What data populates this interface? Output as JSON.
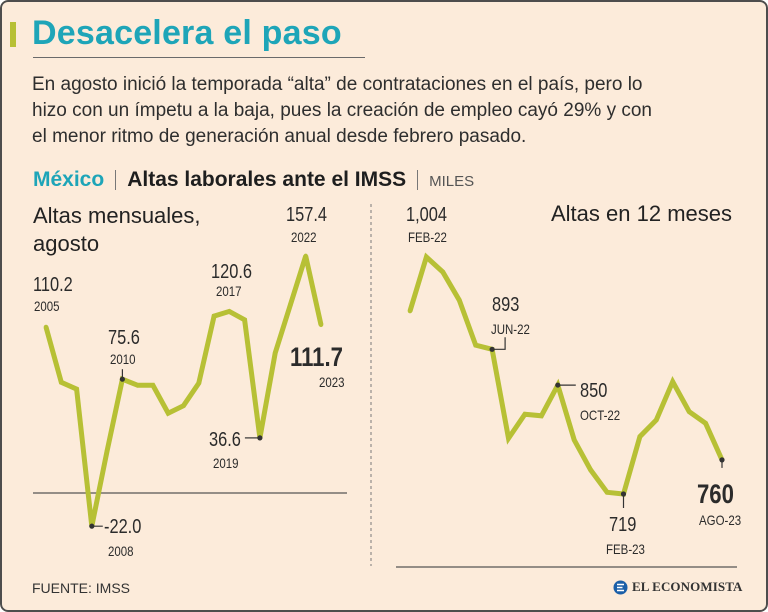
{
  "title": "Desacelera el paso",
  "intro_lines": [
    "En agosto inició la temporada “alta” de contrataciones en el país, pero lo",
    "hizo con un ímpetu a la baja, pues la creación de empleo cayó 29% y con",
    "el menor ritmo de generación anual desde febrero pasado."
  ],
  "subtitle": {
    "country": "México",
    "metric": "Altas laborales ante el IMSS",
    "unit": "MILES"
  },
  "colors": {
    "background": "#fcebda",
    "accent_teal": "#1ea5b8",
    "line_green": "#b7c035",
    "text": "#2e2e2e",
    "muted": "#555555",
    "border": "#4d4d4d",
    "logo_blue": "#1b5fa8"
  },
  "chart_data": [
    {
      "type": "line",
      "title_lines": [
        "Altas mensuales,",
        "agosto"
      ],
      "x": [
        2005,
        2006,
        2007,
        2008,
        2009,
        2010,
        2011,
        2012,
        2013,
        2014,
        2015,
        2016,
        2017,
        2018,
        2019,
        2020,
        2021,
        2022,
        2023
      ],
      "values": [
        110.2,
        73.5,
        69.0,
        -22.0,
        28.0,
        75.6,
        71.5,
        71.5,
        53.0,
        58.0,
        73.0,
        117.5,
        120.6,
        115.0,
        36.6,
        93.0,
        125.0,
        157.4,
        111.7
      ],
      "ylim": [
        -30,
        170
      ],
      "zero_line": true,
      "annotations": [
        {
          "x": 2005,
          "value_label": "110.2",
          "date_label": "2005",
          "highlight": false
        },
        {
          "x": 2008,
          "value_label": "-22.0",
          "date_label": "2008",
          "highlight": false
        },
        {
          "x": 2010,
          "value_label": "75.6",
          "date_label": "2010",
          "highlight": false
        },
        {
          "x": 2017,
          "value_label": "120.6",
          "date_label": "2017",
          "highlight": false
        },
        {
          "x": 2019,
          "value_label": "36.6",
          "date_label": "2019",
          "highlight": false
        },
        {
          "x": 2022,
          "value_label": "157.4",
          "date_label": "2022",
          "highlight": false
        },
        {
          "x": 2023,
          "value_label": "111.7",
          "date_label": "2023",
          "highlight": true
        }
      ]
    },
    {
      "type": "line",
      "title_lines": [
        "Altas en 12 meses"
      ],
      "x": [
        1,
        2,
        3,
        4,
        5,
        6,
        7,
        8,
        9,
        10,
        11,
        12,
        13,
        14,
        15,
        16,
        17,
        18,
        19,
        20
      ],
      "values": [
        939,
        1004,
        986,
        952,
        898,
        893,
        786,
        815,
        813,
        850,
        784,
        748,
        721,
        719,
        788,
        808,
        854,
        818,
        804,
        760
      ],
      "ylim": [
        700,
        1020
      ],
      "zero_line": false,
      "annotations": [
        {
          "x": 2,
          "value_label": "1,004",
          "date_label": "FEB-22",
          "highlight": false
        },
        {
          "x": 6,
          "value_label": "893",
          "date_label": "JUN-22",
          "highlight": false
        },
        {
          "x": 10,
          "value_label": "850",
          "date_label": "OCT-22",
          "highlight": false
        },
        {
          "x": 14,
          "value_label": "719",
          "date_label": "FEB-23",
          "highlight": false
        },
        {
          "x": 20,
          "value_label": "760",
          "date_label": "AGO-23",
          "highlight": true
        }
      ]
    }
  ],
  "footer": {
    "source": "FUENTE: IMSS",
    "brand": "EL ECONOMISTA",
    "logo_icon": "el-economista-logo-icon"
  }
}
